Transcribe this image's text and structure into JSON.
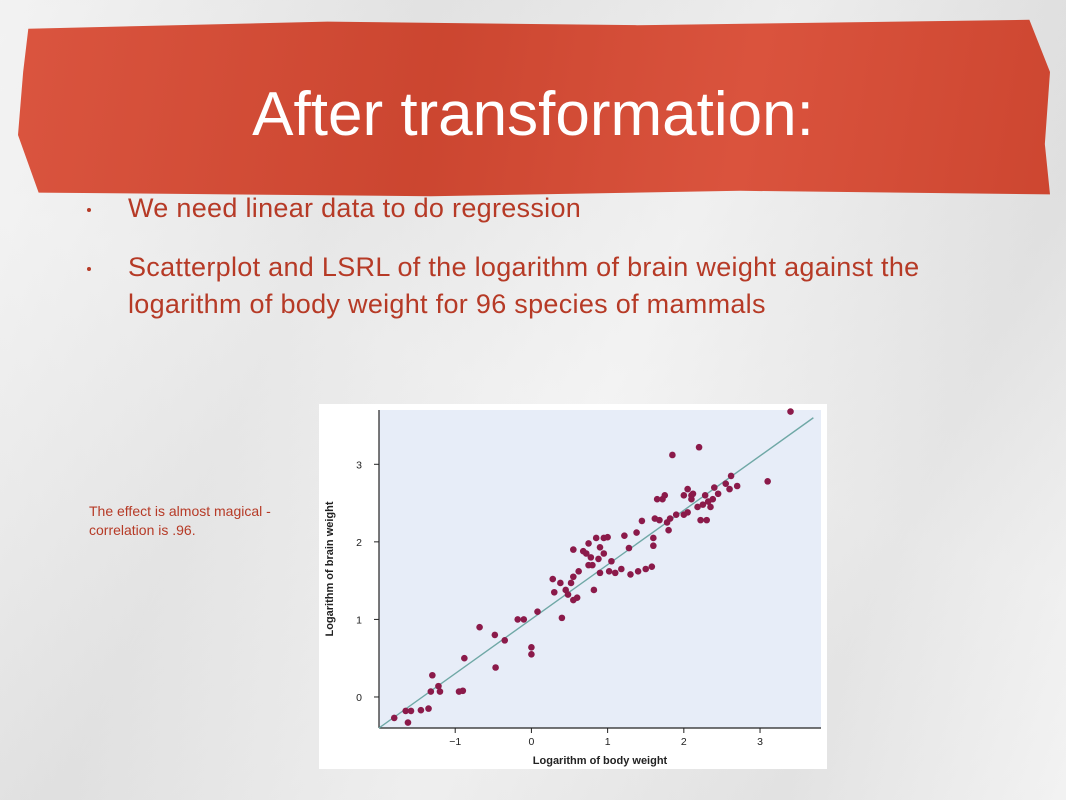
{
  "slide": {
    "title": "After transformation:",
    "bullets": [
      "We need linear data to do regression",
      "Scatterplot and LSRL of the logarithm of brain weight against the logarithm of body weight for 96 species of mammals"
    ],
    "caption": "The effect is almost magical - correlation is .96.",
    "colors": {
      "banner": "#d84a33",
      "text": "#b63a26",
      "title": "#ffffff"
    }
  },
  "chart_data": {
    "type": "scatter",
    "title": "",
    "xlabel": "Logarithm of body weight",
    "ylabel": "Logarithm of brain weight",
    "xlim": [
      -2.0,
      3.8
    ],
    "ylim": [
      -0.4,
      3.7
    ],
    "xticks": [
      -1,
      0,
      1,
      2,
      3
    ],
    "yticks": [
      0,
      1,
      2,
      3
    ],
    "xtick_labels": [
      "−1",
      "0",
      "1",
      "2",
      "3"
    ],
    "ytick_labels": [
      "0",
      "1",
      "2",
      "3"
    ],
    "grid": false,
    "legend": "none",
    "colors": {
      "plot_bg": "#e7edf8",
      "points": "#8b1a4a",
      "line": "#6fa8a6",
      "axes": "#222222"
    },
    "regression_line": {
      "x": [
        -2.0,
        3.7
      ],
      "y": [
        -0.4,
        3.6
      ]
    },
    "series": [
      {
        "values": [
          [
            -1.8,
            -0.27
          ],
          [
            -1.65,
            -0.18
          ],
          [
            -1.62,
            -0.33
          ],
          [
            -1.58,
            -0.18
          ],
          [
            -1.45,
            -0.17
          ],
          [
            -1.35,
            -0.15
          ],
          [
            -1.32,
            0.07
          ],
          [
            -1.3,
            0.28
          ],
          [
            -1.22,
            0.14
          ],
          [
            -1.2,
            0.07
          ],
          [
            -0.95,
            0.07
          ],
          [
            -0.9,
            0.08
          ],
          [
            -0.88,
            0.5
          ],
          [
            -0.68,
            0.9
          ],
          [
            -0.48,
            0.8
          ],
          [
            -0.47,
            0.38
          ],
          [
            -0.35,
            0.73
          ],
          [
            -0.18,
            1.0
          ],
          [
            -0.1,
            1.0
          ],
          [
            0.0,
            0.55
          ],
          [
            0.0,
            0.64
          ],
          [
            0.08,
            1.1
          ],
          [
            0.28,
            1.52
          ],
          [
            0.3,
            1.35
          ],
          [
            0.38,
            1.47
          ],
          [
            0.4,
            1.02
          ],
          [
            0.45,
            1.38
          ],
          [
            0.48,
            1.32
          ],
          [
            0.52,
            1.47
          ],
          [
            0.55,
            1.9
          ],
          [
            0.55,
            1.25
          ],
          [
            0.6,
            1.28
          ],
          [
            0.62,
            1.62
          ],
          [
            0.68,
            1.88
          ],
          [
            0.72,
            1.85
          ],
          [
            0.75,
            1.98
          ],
          [
            0.75,
            1.7
          ],
          [
            0.78,
            1.8
          ],
          [
            0.8,
            1.7
          ],
          [
            0.82,
            1.38
          ],
          [
            0.85,
            2.05
          ],
          [
            0.88,
            1.78
          ],
          [
            0.9,
            1.93
          ],
          [
            0.95,
            2.05
          ],
          [
            0.95,
            1.85
          ],
          [
            1.0,
            2.06
          ],
          [
            1.02,
            1.62
          ],
          [
            1.05,
            1.75
          ],
          [
            1.1,
            1.6
          ],
          [
            1.18,
            1.65
          ],
          [
            1.22,
            2.08
          ],
          [
            1.28,
            1.92
          ],
          [
            1.3,
            1.58
          ],
          [
            1.38,
            2.12
          ],
          [
            1.4,
            1.62
          ],
          [
            1.45,
            2.27
          ],
          [
            1.5,
            1.65
          ],
          [
            1.58,
            1.68
          ],
          [
            1.6,
            1.95
          ],
          [
            1.6,
            2.05
          ],
          [
            1.62,
            2.3
          ],
          [
            1.65,
            2.55
          ],
          [
            1.68,
            2.28
          ],
          [
            1.72,
            2.55
          ],
          [
            1.75,
            2.6
          ],
          [
            1.78,
            2.25
          ],
          [
            1.8,
            2.15
          ],
          [
            1.82,
            2.3
          ],
          [
            1.85,
            3.12
          ],
          [
            1.9,
            2.35
          ],
          [
            2.0,
            2.35
          ],
          [
            2.0,
            2.6
          ],
          [
            2.05,
            2.38
          ],
          [
            2.05,
            2.68
          ],
          [
            2.1,
            2.55
          ],
          [
            2.12,
            2.62
          ],
          [
            2.18,
            2.45
          ],
          [
            2.2,
            3.22
          ],
          [
            2.22,
            2.28
          ],
          [
            2.25,
            2.48
          ],
          [
            2.28,
            2.6
          ],
          [
            2.3,
            2.28
          ],
          [
            2.32,
            2.52
          ],
          [
            2.35,
            2.45
          ],
          [
            2.38,
            2.55
          ],
          [
            2.4,
            2.7
          ],
          [
            2.45,
            2.62
          ],
          [
            2.55,
            2.75
          ],
          [
            2.6,
            2.68
          ],
          [
            2.62,
            2.85
          ],
          [
            2.7,
            2.72
          ],
          [
            3.1,
            2.78
          ],
          [
            3.4,
            3.68
          ],
          [
            2.1,
            2.6
          ],
          [
            0.9,
            1.6
          ],
          [
            0.55,
            1.55
          ]
        ]
      }
    ]
  }
}
